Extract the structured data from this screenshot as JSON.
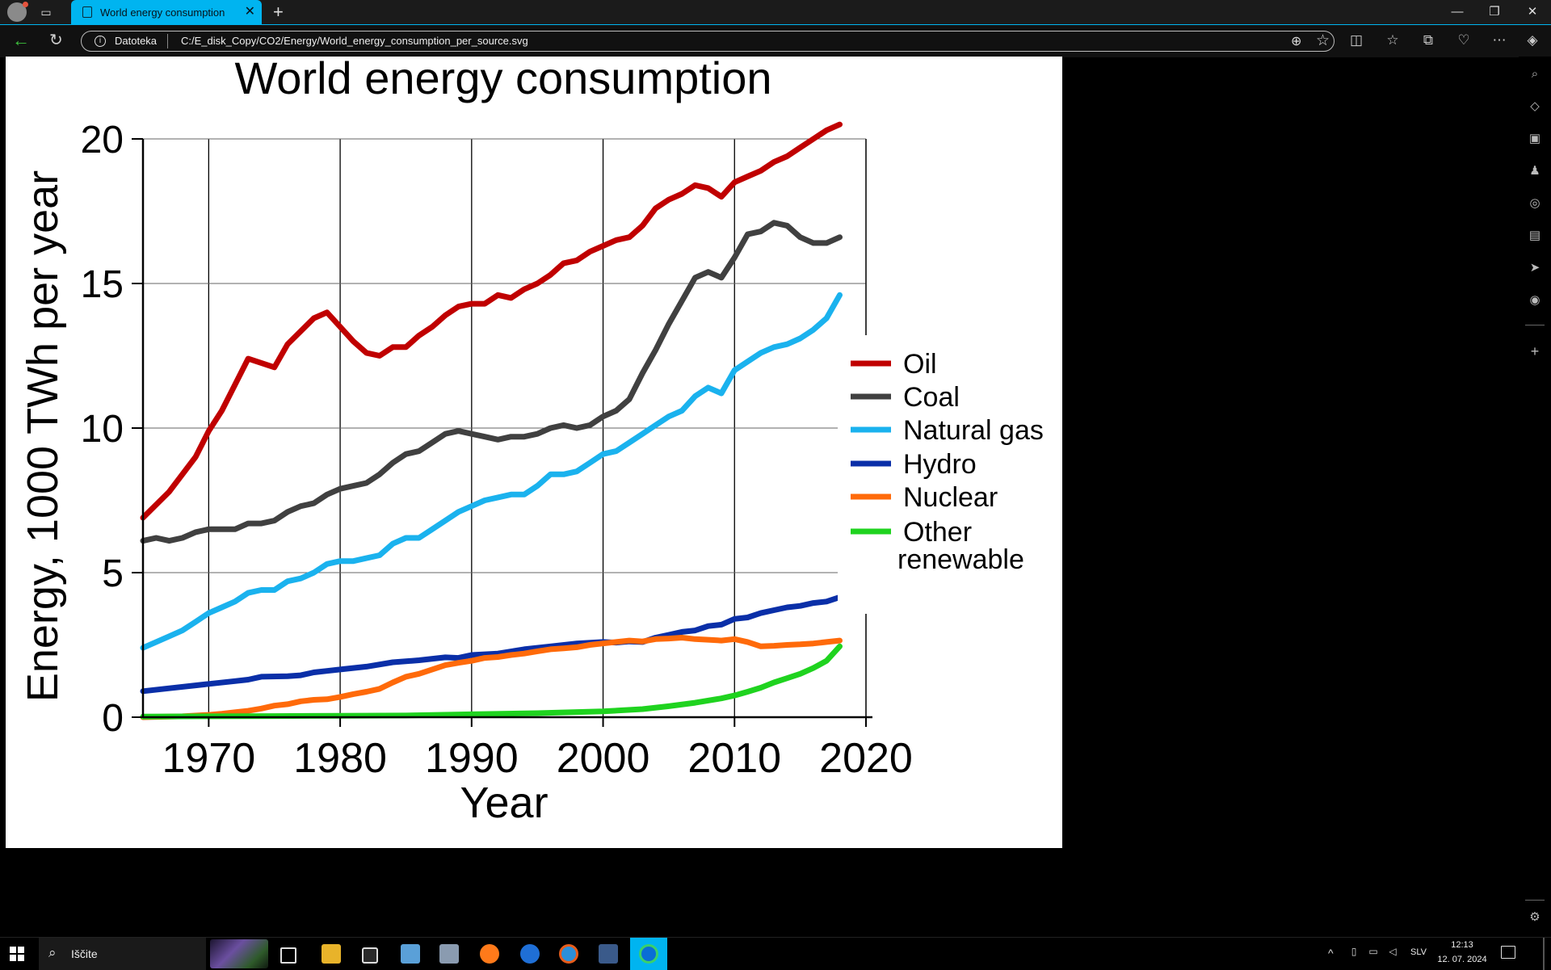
{
  "browser": {
    "tab_title": "World energy consumption",
    "scheme_label": "Datoteka",
    "url": "C:/E_disk_Copy/CO2/Energy/World_energy_consumption_per_source.svg",
    "colors": {
      "accent": "#00b4f0",
      "background": "#000000"
    }
  },
  "taskbar": {
    "search_text": "Iščite",
    "language": "SLV",
    "time": "12:13",
    "date": "12. 07. 2024"
  },
  "chart_data": {
    "type": "line",
    "title": "World energy consumption",
    "xlabel": "Year",
    "ylabel": "Energy, 1000 TWh per year",
    "xlim": [
      1965,
      2020
    ],
    "ylim": [
      0,
      20
    ],
    "x_ticks": [
      1970,
      1980,
      1990,
      2000,
      2010,
      2020
    ],
    "y_ticks": [
      0,
      5,
      10,
      15,
      20
    ],
    "grid": true,
    "legend_position": "right",
    "series": [
      {
        "name": "Oil",
        "color": "#c00000",
        "points": [
          [
            1965,
            6.9
          ],
          [
            1967,
            7.8
          ],
          [
            1969,
            9.0
          ],
          [
            1970,
            9.9
          ],
          [
            1971,
            10.6
          ],
          [
            1972,
            11.5
          ],
          [
            1973,
            12.4
          ],
          [
            1975,
            12.1
          ],
          [
            1976,
            12.9
          ],
          [
            1978,
            13.8
          ],
          [
            1979,
            14.0
          ],
          [
            1980,
            13.5
          ],
          [
            1981,
            13.0
          ],
          [
            1982,
            12.6
          ],
          [
            1983,
            12.5
          ],
          [
            1984,
            12.8
          ],
          [
            1985,
            12.8
          ],
          [
            1986,
            13.2
          ],
          [
            1987,
            13.5
          ],
          [
            1988,
            13.9
          ],
          [
            1989,
            14.2
          ],
          [
            1990,
            14.3
          ],
          [
            1991,
            14.3
          ],
          [
            1992,
            14.6
          ],
          [
            1993,
            14.5
          ],
          [
            1994,
            14.8
          ],
          [
            1995,
            15.0
          ],
          [
            1996,
            15.3
          ],
          [
            1997,
            15.7
          ],
          [
            1998,
            15.8
          ],
          [
            1999,
            16.1
          ],
          [
            2000,
            16.3
          ],
          [
            2001,
            16.5
          ],
          [
            2002,
            16.6
          ],
          [
            2003,
            17.0
          ],
          [
            2004,
            17.6
          ],
          [
            2005,
            17.9
          ],
          [
            2006,
            18.1
          ],
          [
            2007,
            18.4
          ],
          [
            2008,
            18.3
          ],
          [
            2009,
            18.0
          ],
          [
            2010,
            18.5
          ],
          [
            2011,
            18.7
          ],
          [
            2012,
            18.9
          ],
          [
            2013,
            19.2
          ],
          [
            2014,
            19.4
          ],
          [
            2015,
            19.7
          ],
          [
            2016,
            20.0
          ],
          [
            2017,
            20.3
          ],
          [
            2018,
            20.5
          ]
        ]
      },
      {
        "name": "Coal",
        "color": "#404040",
        "points": [
          [
            1965,
            6.1
          ],
          [
            1966,
            6.2
          ],
          [
            1967,
            6.1
          ],
          [
            1968,
            6.2
          ],
          [
            1969,
            6.4
          ],
          [
            1970,
            6.5
          ],
          [
            1971,
            6.5
          ],
          [
            1972,
            6.5
          ],
          [
            1973,
            6.7
          ],
          [
            1974,
            6.7
          ],
          [
            1975,
            6.8
          ],
          [
            1976,
            7.1
          ],
          [
            1977,
            7.3
          ],
          [
            1978,
            7.4
          ],
          [
            1979,
            7.7
          ],
          [
            1980,
            7.9
          ],
          [
            1981,
            8.0
          ],
          [
            1982,
            8.1
          ],
          [
            1983,
            8.4
          ],
          [
            1984,
            8.8
          ],
          [
            1985,
            9.1
          ],
          [
            1986,
            9.2
          ],
          [
            1987,
            9.5
          ],
          [
            1988,
            9.8
          ],
          [
            1989,
            9.9
          ],
          [
            1990,
            9.8
          ],
          [
            1991,
            9.7
          ],
          [
            1992,
            9.6
          ],
          [
            1993,
            9.7
          ],
          [
            1994,
            9.7
          ],
          [
            1995,
            9.8
          ],
          [
            1996,
            10.0
          ],
          [
            1997,
            10.1
          ],
          [
            1998,
            10.0
          ],
          [
            1999,
            10.1
          ],
          [
            2000,
            10.4
          ],
          [
            2001,
            10.6
          ],
          [
            2002,
            11.0
          ],
          [
            2003,
            11.9
          ],
          [
            2004,
            12.7
          ],
          [
            2005,
            13.6
          ],
          [
            2006,
            14.4
          ],
          [
            2007,
            15.2
          ],
          [
            2008,
            15.4
          ],
          [
            2009,
            15.2
          ],
          [
            2010,
            15.9
          ],
          [
            2011,
            16.7
          ],
          [
            2012,
            16.8
          ],
          [
            2013,
            17.1
          ],
          [
            2014,
            17.0
          ],
          [
            2015,
            16.6
          ],
          [
            2016,
            16.4
          ],
          [
            2017,
            16.4
          ],
          [
            2018,
            16.6
          ]
        ]
      },
      {
        "name": "Natural gas",
        "color": "#1ab2ee",
        "points": [
          [
            1965,
            2.4
          ],
          [
            1966,
            2.6
          ],
          [
            1967,
            2.8
          ],
          [
            1968,
            3.0
          ],
          [
            1969,
            3.3
          ],
          [
            1970,
            3.6
          ],
          [
            1971,
            3.8
          ],
          [
            1972,
            4.0
          ],
          [
            1973,
            4.3
          ],
          [
            1974,
            4.4
          ],
          [
            1975,
            4.4
          ],
          [
            1976,
            4.7
          ],
          [
            1977,
            4.8
          ],
          [
            1978,
            5.0
          ],
          [
            1979,
            5.3
          ],
          [
            1980,
            5.4
          ],
          [
            1981,
            5.4
          ],
          [
            1982,
            5.5
          ],
          [
            1983,
            5.6
          ],
          [
            1984,
            6.0
          ],
          [
            1985,
            6.2
          ],
          [
            1986,
            6.2
          ],
          [
            1987,
            6.5
          ],
          [
            1988,
            6.8
          ],
          [
            1989,
            7.1
          ],
          [
            1990,
            7.3
          ],
          [
            1991,
            7.5
          ],
          [
            1992,
            7.6
          ],
          [
            1993,
            7.7
          ],
          [
            1994,
            7.7
          ],
          [
            1995,
            8.0
          ],
          [
            1996,
            8.4
          ],
          [
            1997,
            8.4
          ],
          [
            1998,
            8.5
          ],
          [
            1999,
            8.8
          ],
          [
            2000,
            9.1
          ],
          [
            2001,
            9.2
          ],
          [
            2002,
            9.5
          ],
          [
            2003,
            9.8
          ],
          [
            2004,
            10.1
          ],
          [
            2005,
            10.4
          ],
          [
            2006,
            10.6
          ],
          [
            2007,
            11.1
          ],
          [
            2008,
            11.4
          ],
          [
            2009,
            11.2
          ],
          [
            2010,
            12.0
          ],
          [
            2011,
            12.3
          ],
          [
            2012,
            12.6
          ],
          [
            2013,
            12.8
          ],
          [
            2014,
            12.9
          ],
          [
            2015,
            13.1
          ],
          [
            2016,
            13.4
          ],
          [
            2017,
            13.8
          ],
          [
            2018,
            14.6
          ]
        ]
      },
      {
        "name": "Hydro",
        "color": "#0a2fa8",
        "points": [
          [
            1965,
            0.9
          ],
          [
            1967,
            1.0
          ],
          [
            1969,
            1.1
          ],
          [
            1970,
            1.15
          ],
          [
            1972,
            1.25
          ],
          [
            1973,
            1.3
          ],
          [
            1974,
            1.4
          ],
          [
            1976,
            1.42
          ],
          [
            1977,
            1.45
          ],
          [
            1978,
            1.55
          ],
          [
            1979,
            1.6
          ],
          [
            1980,
            1.65
          ],
          [
            1982,
            1.75
          ],
          [
            1984,
            1.9
          ],
          [
            1986,
            1.97
          ],
          [
            1988,
            2.07
          ],
          [
            1989,
            2.05
          ],
          [
            1990,
            2.15
          ],
          [
            1992,
            2.2
          ],
          [
            1994,
            2.35
          ],
          [
            1996,
            2.45
          ],
          [
            1998,
            2.55
          ],
          [
            2000,
            2.6
          ],
          [
            2001,
            2.58
          ],
          [
            2002,
            2.62
          ],
          [
            2003,
            2.6
          ],
          [
            2004,
            2.75
          ],
          [
            2005,
            2.85
          ],
          [
            2006,
            2.95
          ],
          [
            2007,
            3.0
          ],
          [
            2008,
            3.15
          ],
          [
            2009,
            3.2
          ],
          [
            2010,
            3.4
          ],
          [
            2011,
            3.45
          ],
          [
            2012,
            3.6
          ],
          [
            2013,
            3.7
          ],
          [
            2014,
            3.8
          ],
          [
            2015,
            3.85
          ],
          [
            2016,
            3.95
          ],
          [
            2017,
            4.0
          ],
          [
            2018,
            4.15
          ]
        ]
      },
      {
        "name": "Nuclear",
        "color": "#ff6a0a",
        "points": [
          [
            1965,
            0.0
          ],
          [
            1968,
            0.03
          ],
          [
            1970,
            0.08
          ],
          [
            1971,
            0.12
          ],
          [
            1972,
            0.17
          ],
          [
            1973,
            0.22
          ],
          [
            1974,
            0.3
          ],
          [
            1975,
            0.4
          ],
          [
            1976,
            0.45
          ],
          [
            1977,
            0.55
          ],
          [
            1978,
            0.6
          ],
          [
            1979,
            0.62
          ],
          [
            1980,
            0.7
          ],
          [
            1981,
            0.8
          ],
          [
            1982,
            0.88
          ],
          [
            1983,
            0.98
          ],
          [
            1984,
            1.2
          ],
          [
            1985,
            1.4
          ],
          [
            1986,
            1.5
          ],
          [
            1987,
            1.65
          ],
          [
            1988,
            1.8
          ],
          [
            1989,
            1.88
          ],
          [
            1990,
            1.95
          ],
          [
            1991,
            2.05
          ],
          [
            1992,
            2.08
          ],
          [
            1993,
            2.15
          ],
          [
            1994,
            2.2
          ],
          [
            1995,
            2.28
          ],
          [
            1996,
            2.35
          ],
          [
            1997,
            2.38
          ],
          [
            1998,
            2.42
          ],
          [
            1999,
            2.5
          ],
          [
            2000,
            2.55
          ],
          [
            2001,
            2.6
          ],
          [
            2002,
            2.65
          ],
          [
            2003,
            2.62
          ],
          [
            2004,
            2.7
          ],
          [
            2005,
            2.72
          ],
          [
            2006,
            2.75
          ],
          [
            2007,
            2.7
          ],
          [
            2008,
            2.68
          ],
          [
            2009,
            2.65
          ],
          [
            2010,
            2.7
          ],
          [
            2011,
            2.6
          ],
          [
            2012,
            2.45
          ],
          [
            2013,
            2.47
          ],
          [
            2014,
            2.5
          ],
          [
            2015,
            2.52
          ],
          [
            2016,
            2.55
          ],
          [
            2017,
            2.6
          ],
          [
            2018,
            2.65
          ]
        ]
      },
      {
        "name": "Other renewable",
        "color": "#1fd31f",
        "points": [
          [
            1965,
            0.02
          ],
          [
            1970,
            0.03
          ],
          [
            1975,
            0.04
          ],
          [
            1980,
            0.05
          ],
          [
            1985,
            0.06
          ],
          [
            1990,
            0.1
          ],
          [
            1995,
            0.14
          ],
          [
            2000,
            0.2
          ],
          [
            2003,
            0.28
          ],
          [
            2005,
            0.38
          ],
          [
            2007,
            0.5
          ],
          [
            2009,
            0.65
          ],
          [
            2010,
            0.75
          ],
          [
            2011,
            0.88
          ],
          [
            2012,
            1.02
          ],
          [
            2013,
            1.2
          ],
          [
            2014,
            1.35
          ],
          [
            2015,
            1.5
          ],
          [
            2016,
            1.7
          ],
          [
            2017,
            1.95
          ],
          [
            2018,
            2.45
          ]
        ]
      }
    ]
  }
}
